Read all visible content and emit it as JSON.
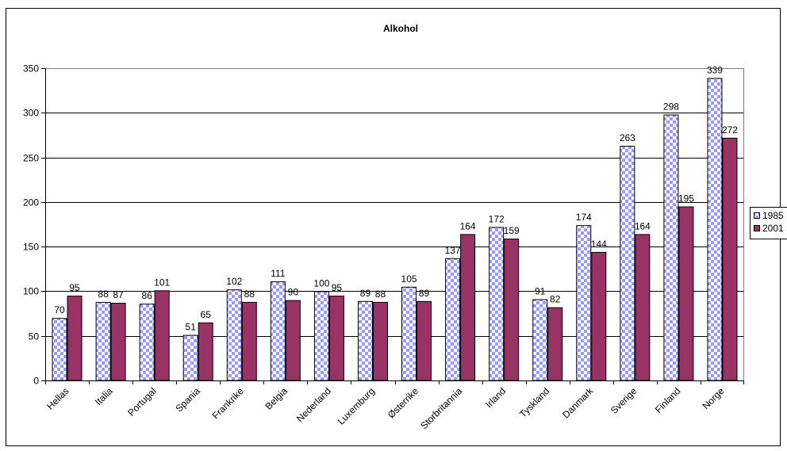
{
  "chart_data": {
    "type": "bar",
    "title": "Alkohol",
    "xlabel": "",
    "ylabel": "",
    "ylim": [
      0,
      350
    ],
    "yticks": [
      0,
      50,
      100,
      150,
      200,
      250,
      300,
      350
    ],
    "grid": true,
    "legend_position": "right",
    "categories": [
      "Hellas",
      "Italia",
      "Portugal",
      "Spania",
      "Frankrike",
      "Belgia",
      "Nederland",
      "Luxemburg",
      "Østerrike",
      "Storbritannia",
      "Irland",
      "Tyskland",
      "Danmark",
      "Sverige",
      "Finland",
      "Norge"
    ],
    "series": [
      {
        "name": "1985",
        "color": "#9999ff",
        "pattern": "checker",
        "values": [
          70,
          88,
          86,
          51,
          102,
          111,
          100,
          89,
          105,
          137,
          172,
          91,
          174,
          263,
          298,
          339
        ]
      },
      {
        "name": "2001",
        "color": "#993366",
        "values": [
          95,
          87,
          101,
          65,
          88,
          90,
          95,
          88,
          89,
          164,
          159,
          82,
          144,
          164,
          195,
          272
        ]
      }
    ]
  }
}
